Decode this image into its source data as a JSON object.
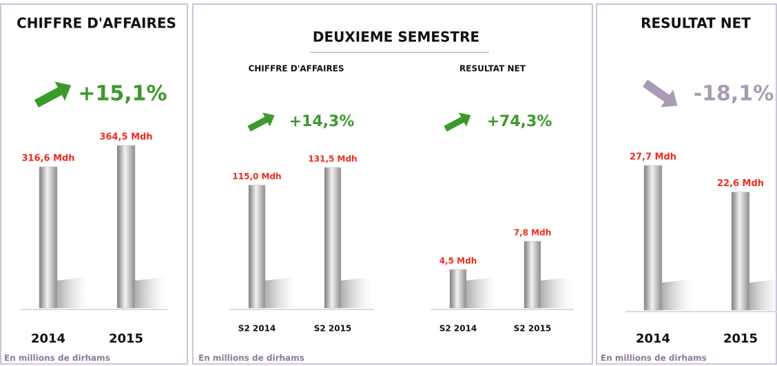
{
  "chart_data": [
    {
      "type": "bar",
      "title": "CHIFFRE D'AFFAIRES",
      "change": "+15,1%",
      "change_color": "#3c9a2c",
      "arrow": "up",
      "categories": [
        "2014",
        "2015"
      ],
      "values": [
        316.6,
        364.5
      ],
      "value_labels": [
        "316,6 Mdh",
        "364,5 Mdh"
      ],
      "color": "#b8b8b8",
      "label_color": "#ee2a1c"
    },
    {
      "type": "bar",
      "title": "CHIFFRE D'AFFAIRES",
      "change": "+14,3%",
      "change_color": "#3c9a2c",
      "arrow": "up",
      "categories": [
        "S2 2014",
        "S2 2015"
      ],
      "values": [
        115.0,
        131.5
      ],
      "value_labels": [
        "115,0 Mdh",
        "131,5 Mdh"
      ],
      "color": "#b8b8b8",
      "label_color": "#ee2a1c"
    },
    {
      "type": "bar",
      "title": "RESULTAT NET",
      "change": "+74,3%",
      "change_color": "#3c9a2c",
      "arrow": "up",
      "categories": [
        "S2 2014",
        "S2 2015"
      ],
      "values": [
        4.5,
        7.8
      ],
      "value_labels": [
        "4,5 Mdh",
        "7,8 Mdh"
      ],
      "color": "#b8b8b8",
      "label_color": "#ee2a1c"
    },
    {
      "type": "bar",
      "title": "RESULTAT NET",
      "change": "-18,1%",
      "change_color": "#a99bb5",
      "arrow": "down",
      "categories": [
        "2014",
        "2015"
      ],
      "values": [
        27.7,
        22.6
      ],
      "value_labels": [
        "27,7 Mdh",
        "22,6 Mdh"
      ],
      "color": "#b8b8b8",
      "label_color": "#ee2a1c"
    }
  ],
  "group_title": "DEUXIEME SEMESTRE",
  "notes": [
    "En millions de dirhams",
    "En millions de dirhams",
    "En millions de dirhams"
  ]
}
